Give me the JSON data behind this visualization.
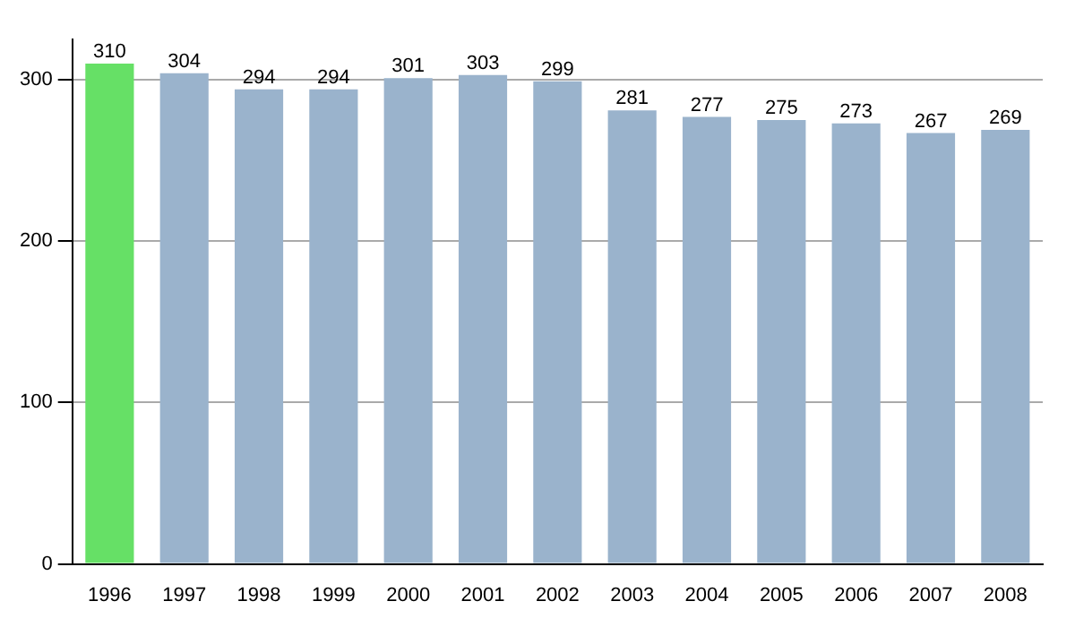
{
  "chart_data": {
    "type": "bar",
    "categories": [
      "1996",
      "1997",
      "1998",
      "1999",
      "2000",
      "2001",
      "2002",
      "2003",
      "2004",
      "2005",
      "2006",
      "2007",
      "2008"
    ],
    "values": [
      310,
      304,
      294,
      294,
      301,
      303,
      299,
      281,
      277,
      275,
      273,
      267,
      269
    ],
    "colors": [
      "#66e066",
      "#9ab3cc",
      "#9ab3cc",
      "#9ab3cc",
      "#9ab3cc",
      "#9ab3cc",
      "#9ab3cc",
      "#9ab3cc",
      "#9ab3cc",
      "#9ab3cc",
      "#9ab3cc",
      "#9ab3cc",
      "#9ab3cc"
    ],
    "ylim": [
      0,
      325
    ],
    "yticks": [
      0,
      100,
      200,
      300
    ],
    "grid": "y",
    "data_labels": true
  }
}
